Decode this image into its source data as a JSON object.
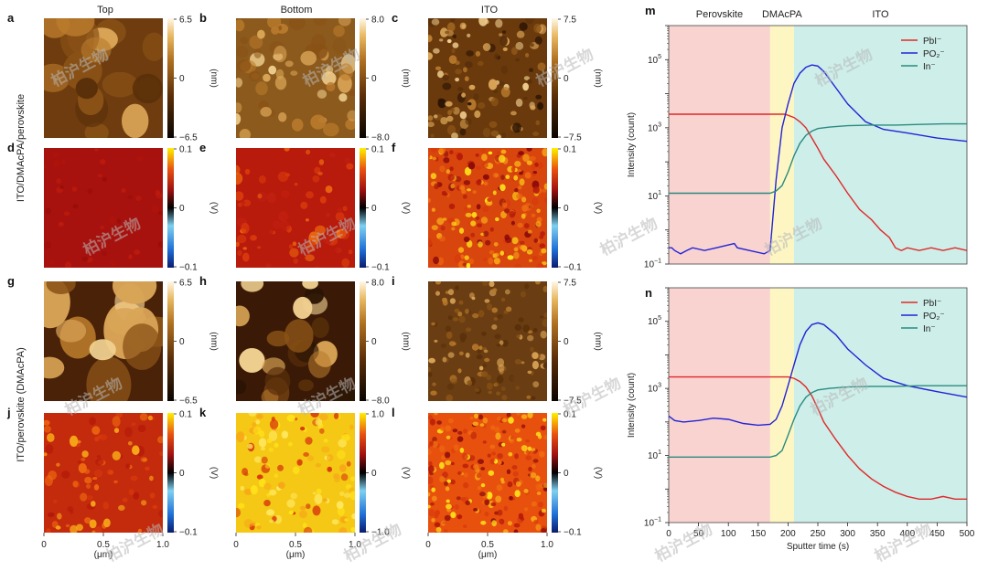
{
  "columns": {
    "top": "Top",
    "bottom": "Bottom",
    "ito": "ITO"
  },
  "row_labels": {
    "r1": "ITO/DMAcPA/perovskite",
    "r2": "ITO/perovskite (DMAcPA)"
  },
  "panels": [
    {
      "id": "a",
      "kind": "height",
      "row": 0,
      "col": 0,
      "cbar": [
        "6.5",
        "0",
        "−6.5"
      ],
      "unit": "(nm)"
    },
    {
      "id": "b",
      "kind": "height",
      "row": 0,
      "col": 1,
      "cbar": [
        "8.0",
        "0",
        "−8.0"
      ],
      "unit": "(nm)"
    },
    {
      "id": "c",
      "kind": "height",
      "row": 0,
      "col": 2,
      "cbar": [
        "7.5",
        "0",
        "−7.5"
      ],
      "unit": "(nm)"
    },
    {
      "id": "d",
      "kind": "potential",
      "row": 1,
      "col": 0,
      "cbar": [
        "0.1",
        "0",
        "−0.1"
      ],
      "unit": "(V)"
    },
    {
      "id": "e",
      "kind": "potential",
      "row": 1,
      "col": 1,
      "cbar": [
        "0.1",
        "0",
        "−0.1"
      ],
      "unit": "(V)"
    },
    {
      "id": "f",
      "kind": "potential",
      "row": 1,
      "col": 2,
      "cbar": [
        "0.1",
        "0",
        "−0.1"
      ],
      "unit": "(V)"
    },
    {
      "id": "g",
      "kind": "height",
      "row": 2,
      "col": 0,
      "cbar": [
        "6.5",
        "0",
        "−6.5"
      ],
      "unit": "(nm)"
    },
    {
      "id": "h",
      "kind": "height",
      "row": 2,
      "col": 1,
      "cbar": [
        "8.0",
        "0",
        "−8.0"
      ],
      "unit": "(nm)"
    },
    {
      "id": "i",
      "kind": "height",
      "row": 2,
      "col": 2,
      "cbar": [
        "7.5",
        "0",
        "−7.5"
      ],
      "unit": "(nm)"
    },
    {
      "id": "j",
      "kind": "potential",
      "row": 3,
      "col": 0,
      "cbar": [
        "0.1",
        "0",
        "−0.1"
      ],
      "unit": "(V)"
    },
    {
      "id": "k",
      "kind": "potential",
      "row": 3,
      "col": 1,
      "cbar": [
        "1.0",
        "0",
        "−1.0"
      ],
      "unit": "(V)"
    },
    {
      "id": "l",
      "kind": "potential",
      "row": 3,
      "col": 2,
      "cbar": [
        "0.1",
        "0",
        "−0.1"
      ],
      "unit": "(V)"
    }
  ],
  "afm_xaxis": {
    "ticks": [
      "0",
      "0.5",
      "1.0"
    ],
    "label": "(μm)"
  },
  "watermark": "柏沪生物",
  "colors": {
    "pbi": "#e0282a",
    "po2": "#2323d6",
    "in": "#2a8a80",
    "perovskite_region": "#f8d3d0",
    "dmacpa_region": "#fdf6c2",
    "ito_region": "#cdeee9"
  },
  "chart_data": [
    {
      "id": "m",
      "type": "line",
      "title": "",
      "yscale": "log",
      "ylabel": "Intensity (count)",
      "xlabel": "",
      "xlim": [
        0,
        500
      ],
      "ylim": [
        0.1,
        1000000
      ],
      "ytick_exponents": [
        -1,
        1,
        3,
        5
      ],
      "xticks": [],
      "regions": [
        {
          "label": "Perovskite",
          "from": 0,
          "to": 170
        },
        {
          "label": "DMAcPA",
          "from": 170,
          "to": 210
        },
        {
          "label": "ITO",
          "from": 210,
          "to": 500
        }
      ],
      "legend": [
        "PbI⁻",
        "PO₂⁻",
        "In⁻"
      ],
      "series": [
        {
          "name": "PbI-",
          "x": [
            0,
            50,
            100,
            150,
            195,
            210,
            220,
            230,
            240,
            250,
            260,
            280,
            300,
            320,
            340,
            355,
            370,
            380,
            390,
            400,
            420,
            440,
            460,
            480,
            500
          ],
          "y": [
            2500,
            2500,
            2500,
            2500,
            2500,
            2000,
            1500,
            1000,
            500,
            250,
            120,
            40,
            12,
            4,
            2,
            1,
            0.6,
            0.3,
            0.25,
            0.3,
            0.25,
            0.3,
            0.25,
            0.3,
            0.25
          ]
        },
        {
          "name": "PO2-",
          "x": [
            0,
            5,
            10,
            20,
            30,
            40,
            60,
            80,
            110,
            115,
            160,
            170,
            180,
            190,
            200,
            210,
            220,
            230,
            240,
            250,
            260,
            280,
            300,
            330,
            360,
            400,
            450,
            500
          ],
          "y": [
            0.3,
            0.3,
            0.25,
            0.2,
            0.25,
            0.3,
            0.25,
            0.3,
            0.4,
            0.3,
            0.2,
            0.25,
            30,
            1000,
            5000,
            20000,
            40000,
            60000,
            70000,
            65000,
            45000,
            15000,
            5000,
            1500,
            900,
            700,
            500,
            400
          ]
        },
        {
          "name": "In-",
          "x": [
            0,
            30,
            60,
            90,
            120,
            150,
            170,
            180,
            190,
            200,
            210,
            220,
            230,
            240,
            250,
            270,
            300,
            340,
            380,
            420,
            460,
            500
          ],
          "y": [
            12,
            12,
            12,
            12,
            12,
            12,
            12,
            14,
            20,
            50,
            150,
            350,
            600,
            800,
            950,
            1050,
            1150,
            1200,
            1200,
            1250,
            1300,
            1300
          ]
        }
      ]
    },
    {
      "id": "n",
      "type": "line",
      "title": "",
      "yscale": "log",
      "ylabel": "Intensity (count)",
      "xlabel": "Sputter time (s)",
      "xlim": [
        0,
        500
      ],
      "ylim": [
        0.1,
        1000000
      ],
      "ytick_exponents": [
        -1,
        1,
        3,
        5
      ],
      "xticks": [
        0,
        50,
        100,
        150,
        200,
        250,
        300,
        350,
        400,
        450,
        500
      ],
      "regions": [
        {
          "label": "",
          "from": 0,
          "to": 170
        },
        {
          "label": "",
          "from": 170,
          "to": 210
        },
        {
          "label": "",
          "from": 210,
          "to": 500
        }
      ],
      "legend": [
        "PbI⁻",
        "PO₂⁻",
        "In⁻"
      ],
      "series": [
        {
          "name": "PbI-",
          "x": [
            0,
            50,
            100,
            150,
            200,
            210,
            220,
            230,
            240,
            250,
            260,
            280,
            300,
            320,
            340,
            360,
            380,
            400,
            420,
            440,
            460,
            480,
            500
          ],
          "y": [
            2200,
            2200,
            2200,
            2200,
            2200,
            2000,
            1600,
            1100,
            600,
            250,
            100,
            30,
            10,
            4,
            2,
            1.2,
            0.8,
            0.6,
            0.5,
            0.5,
            0.6,
            0.5,
            0.5
          ]
        },
        {
          "name": "PO2-",
          "x": [
            0,
            10,
            25,
            50,
            75,
            100,
            125,
            150,
            170,
            180,
            190,
            200,
            210,
            220,
            230,
            240,
            250,
            260,
            280,
            300,
            330,
            360,
            400,
            450,
            500
          ],
          "y": [
            150,
            110,
            100,
            110,
            130,
            120,
            90,
            80,
            85,
            120,
            300,
            1200,
            5000,
            20000,
            50000,
            80000,
            90000,
            80000,
            40000,
            15000,
            5000,
            2000,
            1200,
            800,
            550
          ]
        },
        {
          "name": "In-",
          "x": [
            0,
            30,
            60,
            90,
            120,
            150,
            170,
            180,
            190,
            200,
            210,
            220,
            230,
            240,
            250,
            270,
            300,
            340,
            380,
            420,
            460,
            500
          ],
          "y": [
            9,
            9,
            9,
            9,
            9,
            9,
            9,
            10,
            14,
            40,
            120,
            300,
            550,
            750,
            900,
            1000,
            1100,
            1150,
            1150,
            1200,
            1200,
            1200
          ]
        }
      ]
    }
  ]
}
